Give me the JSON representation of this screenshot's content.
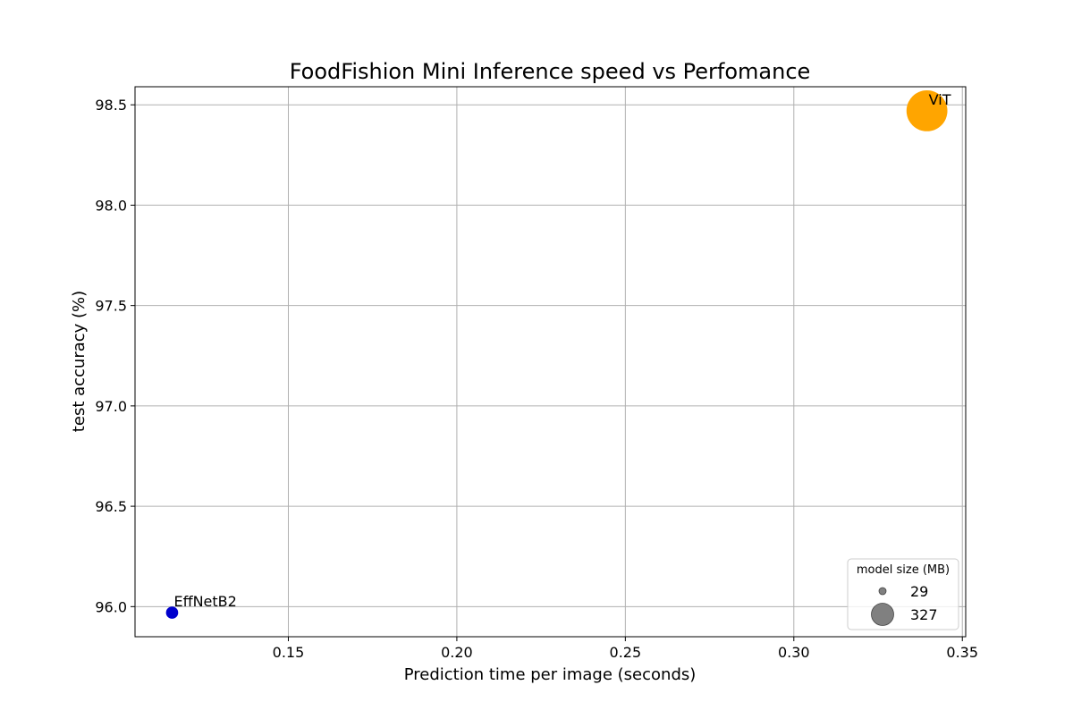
{
  "chart_data": {
    "type": "scatter",
    "title": "FoodFishion Mini Inference speed vs Perfomance",
    "xlabel": "Prediction time per image (seconds)",
    "ylabel": "test accuracy (%)",
    "xlim": [
      0.1045,
      0.351
    ],
    "ylim": [
      95.85,
      98.59
    ],
    "xticks": [
      0.15,
      0.2,
      0.25,
      0.3,
      0.35
    ],
    "xtick_labels": [
      "0.15",
      "0.20",
      "0.25",
      "0.30",
      "0.35"
    ],
    "yticks": [
      96.0,
      96.5,
      97.0,
      97.5,
      98.0,
      98.5
    ],
    "ytick_labels": [
      "96.0",
      "96.5",
      "97.0",
      "97.5",
      "98.0",
      "98.5"
    ],
    "grid": true,
    "points": [
      {
        "label": "EffNetB2",
        "x": 0.1155,
        "y": 95.97,
        "model_size_mb": 29,
        "color": "#0000cd"
      },
      {
        "label": "ViT",
        "x": 0.3395,
        "y": 98.47,
        "model_size_mb": 327,
        "color": "#ffa500"
      }
    ],
    "legend": {
      "title": "model size (MB)",
      "placement": "lower right",
      "entries": [
        {
          "label": "29",
          "size_mb": 29
        },
        {
          "label": "327",
          "size_mb": 327
        }
      ],
      "marker_color": "#808080"
    }
  }
}
